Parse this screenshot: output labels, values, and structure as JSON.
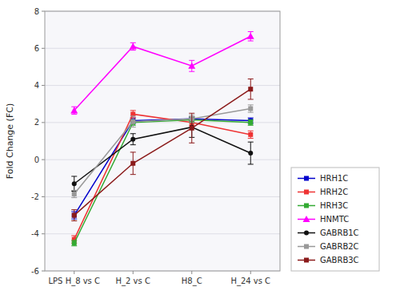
{
  "chart_data": {
    "type": "line",
    "categories": [
      "LPS H_8 vs C",
      "H_2 vs C",
      "H8_C",
      "H_24 vs C"
    ],
    "series": [
      {
        "name": "HRH1C",
        "color": "#0000CC",
        "marker": "square",
        "values": [
          -3.0,
          2.1,
          2.2,
          2.1
        ],
        "errors": [
          0.2,
          0.15,
          0.1,
          0.15
        ]
      },
      {
        "name": "HRH2C",
        "color": "#EE3333",
        "marker": "square",
        "values": [
          -4.3,
          2.45,
          2.0,
          1.35
        ],
        "errors": [
          0.2,
          0.2,
          0.15,
          0.2
        ]
      },
      {
        "name": "HRH3C",
        "color": "#33AA33",
        "marker": "square",
        "values": [
          -4.5,
          2.0,
          2.15,
          2.0
        ],
        "errors": [
          0.15,
          0.15,
          0.15,
          0.15
        ]
      },
      {
        "name": "HNMTC",
        "color": "#FF00FF",
        "marker": "triangle",
        "values": [
          2.65,
          6.1,
          5.05,
          6.65
        ],
        "errors": [
          0.2,
          0.2,
          0.3,
          0.25
        ]
      },
      {
        "name": "GABRB1C",
        "color": "#111111",
        "marker": "circle",
        "values": [
          -1.3,
          1.1,
          1.75,
          0.35
        ],
        "errors": [
          0.4,
          0.3,
          0.55,
          0.6
        ]
      },
      {
        "name": "GABRB2C",
        "color": "#999999",
        "marker": "square",
        "values": [
          -1.85,
          2.05,
          2.2,
          2.75
        ],
        "errors": [
          0.2,
          0.3,
          0.2,
          0.2
        ]
      },
      {
        "name": "GABRB3C",
        "color": "#8B1A1A",
        "marker": "square",
        "values": [
          -3.0,
          -0.2,
          1.7,
          3.8
        ],
        "errors": [
          0.3,
          0.6,
          0.8,
          0.55
        ]
      }
    ],
    "y_label": "Fold Change (FC)",
    "ylim": [
      -6,
      8
    ],
    "yticks": [
      -6,
      -4,
      -2,
      0,
      2,
      4,
      6,
      8
    ],
    "grid": true,
    "legend": "right"
  }
}
